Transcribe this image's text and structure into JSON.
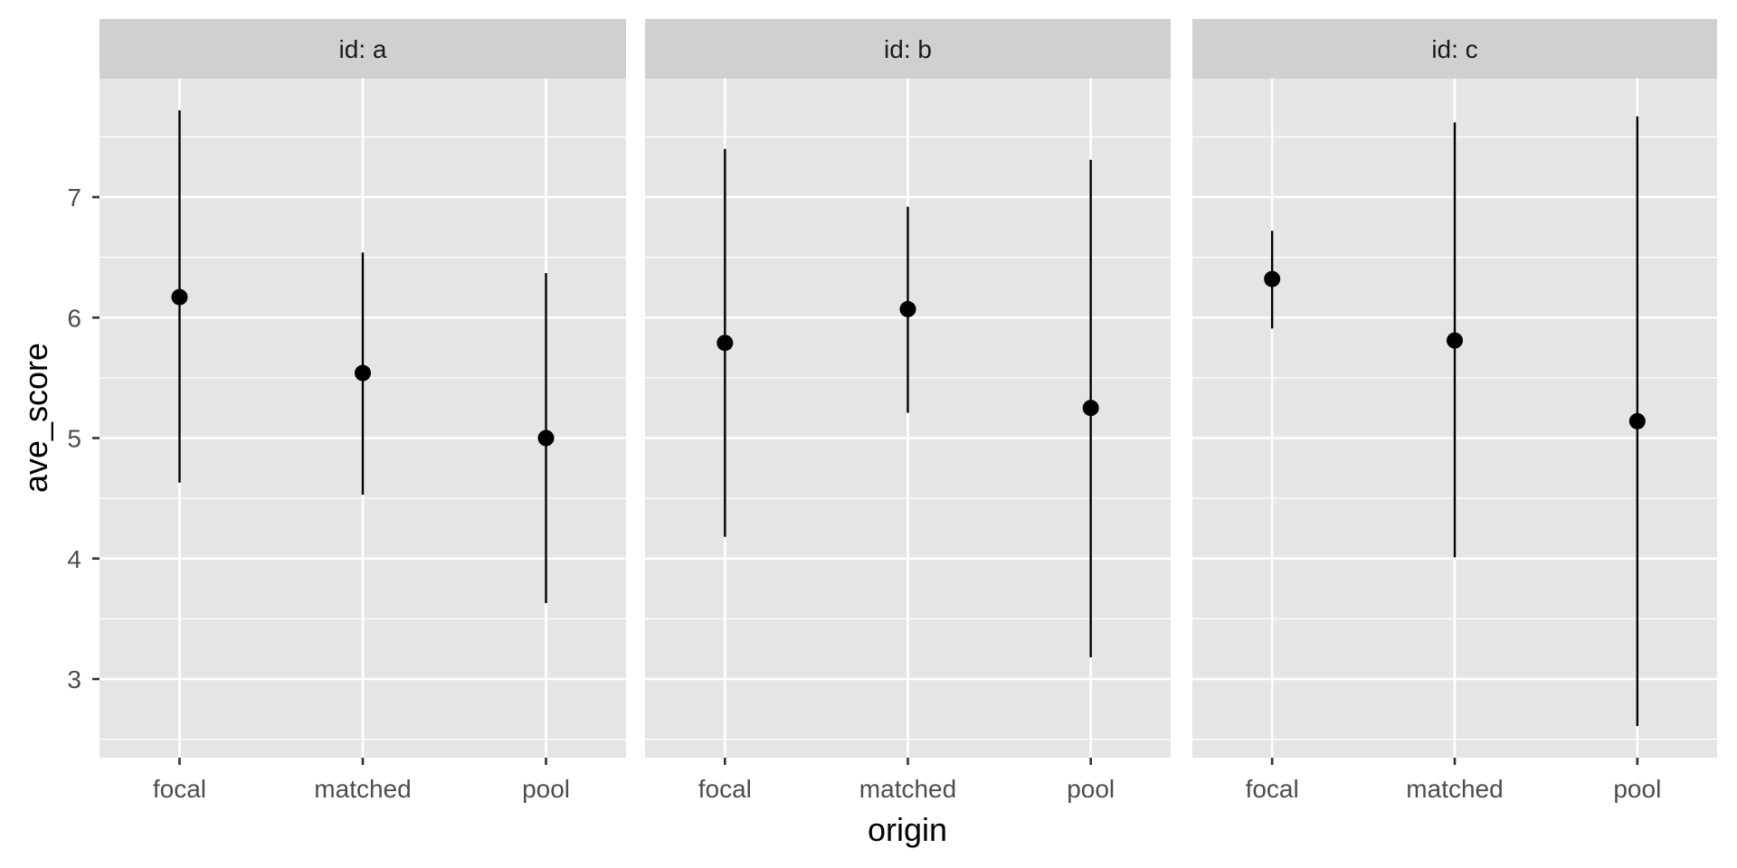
{
  "chart_data": {
    "type": "pointrange",
    "title": "",
    "xlabel": "origin",
    "ylabel": "ave_score",
    "facet_var": "id",
    "categories": [
      "focal",
      "matched",
      "pool"
    ],
    "yticks": [
      3,
      4,
      5,
      6,
      7
    ],
    "ylim": [
      2.35,
      7.88
    ],
    "grid": true,
    "legend": "none",
    "panels": [
      {
        "label": "id: a",
        "points": [
          {
            "x": "focal",
            "y": 6.17,
            "ymin": 4.63,
            "ymax": 7.72
          },
          {
            "x": "matched",
            "y": 5.54,
            "ymin": 4.53,
            "ymax": 6.54
          },
          {
            "x": "pool",
            "y": 5.0,
            "ymin": 3.63,
            "ymax": 6.37
          }
        ]
      },
      {
        "label": "id: b",
        "points": [
          {
            "x": "focal",
            "y": 5.79,
            "ymin": 4.18,
            "ymax": 7.4
          },
          {
            "x": "matched",
            "y": 6.07,
            "ymin": 5.21,
            "ymax": 6.92
          },
          {
            "x": "pool",
            "y": 5.25,
            "ymin": 3.18,
            "ymax": 7.31
          }
        ]
      },
      {
        "label": "id: c",
        "points": [
          {
            "x": "focal",
            "y": 6.32,
            "ymin": 5.91,
            "ymax": 6.72
          },
          {
            "x": "matched",
            "y": 5.81,
            "ymin": 4.01,
            "ymax": 7.62
          },
          {
            "x": "pool",
            "y": 5.14,
            "ymin": 2.61,
            "ymax": 7.67
          }
        ]
      }
    ]
  },
  "colors": {
    "panel_bg": "#e5e5e5",
    "strip_bg": "#d0d0d0",
    "grid": "#ffffff",
    "point": "#000000",
    "tick_text": "#4d4d4d"
  }
}
